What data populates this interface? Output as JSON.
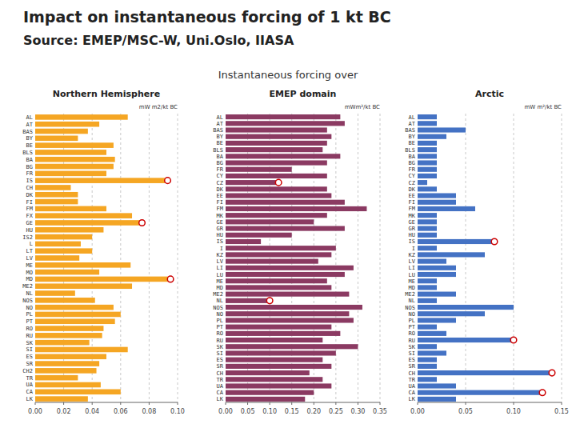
{
  "title": [
    "Impact on instantaneous forcing of 1 kt BC",
    "Source: EMEP/MSC-W, Uni.Oslo, IIASA"
  ],
  "subtitle": "Instantaneous forcing over",
  "chart_data": [
    {
      "type": "bar",
      "orientation": "horizontal",
      "title": "Northern Hemisphere",
      "annotations": [
        "mW m2/kt BC"
      ],
      "categories": [
        "AL",
        "AT",
        "BAS",
        "BY",
        "BE",
        "BLS",
        "BA",
        "BG",
        "FR",
        "IS",
        "CH",
        "DK",
        "FI",
        "FM",
        "FX",
        "GE",
        "HU",
        "IS2",
        "L",
        "LT",
        "LV",
        "ME",
        "MO",
        "MD",
        "ME2",
        "NL",
        "NOS",
        "NO",
        "PL",
        "PT",
        "RO",
        "RU",
        "SK",
        "SI",
        "ES",
        "SR",
        "CH2",
        "TR",
        "UA",
        "CA",
        "LK"
      ],
      "series": [
        {
          "type": "bar",
          "color": "#F5A623",
          "values": [
            0.065,
            0.045,
            0.037,
            0.03,
            0.055,
            0.05,
            0.056,
            0.055,
            0.05,
            0.093,
            0.025,
            0.03,
            0.03,
            0.05,
            0.068,
            0.075,
            0.048,
            0.04,
            0.032,
            0.04,
            0.031,
            0.067,
            0.045,
            0.095,
            0.068,
            0.028,
            0.042,
            0.055,
            0.06,
            0.056,
            0.048,
            0.047,
            0.038,
            0.065,
            0.05,
            0.045,
            0.043,
            0.03,
            0.046,
            0.06,
            0.037
          ]
        },
        {
          "type": "scatter",
          "marker": "circle",
          "color": "#CC0000",
          "values": [
            null,
            null,
            null,
            null,
            null,
            null,
            null,
            null,
            null,
            0.093,
            null,
            null,
            null,
            null,
            null,
            0.075,
            null,
            null,
            null,
            null,
            null,
            null,
            null,
            0.095,
            null,
            null,
            null,
            null,
            null,
            null,
            null,
            null,
            null,
            null,
            null,
            null,
            null,
            null,
            null,
            null,
            null
          ]
        }
      ],
      "xlim": [
        0.0,
        0.1
      ],
      "xticks": [
        {
          "value": 0.0,
          "label": "0.00"
        },
        {
          "value": 0.02,
          "label": "0.02"
        },
        {
          "value": 0.04,
          "label": "0.04"
        },
        {
          "value": 0.06,
          "label": "0.06"
        },
        {
          "value": 0.08,
          "label": "0.08"
        },
        {
          "value": 0.1,
          "label": "0.10"
        }
      ],
      "grid": true
    },
    {
      "type": "bar",
      "orientation": "horizontal",
      "title": "EMEP domain",
      "annotations": [
        "mWm²/kt BC"
      ],
      "categories": [
        "AL",
        "AT",
        "BAS",
        "BY",
        "BE",
        "BLS",
        "BA",
        "BG",
        "FR",
        "CY",
        "CZ",
        "DK",
        "EE",
        "FI",
        "FM",
        "MK",
        "GE",
        "GR",
        "HU",
        "IS",
        "I",
        "KZ",
        "LV",
        "LI",
        "LU",
        "ME",
        "MD",
        "ME2",
        "NL",
        "NOS",
        "NO",
        "PL",
        "PT",
        "RO",
        "RU",
        "SK",
        "SI",
        "ES",
        "SR",
        "CH",
        "TR",
        "UA",
        "CA",
        "LK"
      ],
      "series": [
        {
          "type": "bar",
          "color": "#8B3A62",
          "values": [
            0.26,
            0.27,
            0.23,
            0.24,
            0.23,
            0.22,
            0.26,
            0.23,
            0.15,
            0.23,
            0.12,
            0.23,
            0.24,
            0.27,
            0.32,
            0.23,
            0.2,
            0.27,
            0.15,
            0.08,
            0.25,
            0.24,
            0.21,
            0.29,
            0.27,
            0.23,
            0.24,
            0.28,
            0.1,
            0.31,
            0.28,
            0.29,
            0.24,
            0.26,
            0.22,
            0.3,
            0.25,
            0.22,
            0.24,
            0.19,
            0.22,
            0.24,
            0.2,
            0.18
          ]
        },
        {
          "type": "scatter",
          "marker": "circle",
          "color": "#CC0000",
          "values": [
            null,
            null,
            null,
            null,
            null,
            null,
            null,
            null,
            null,
            null,
            0.12,
            null,
            null,
            null,
            null,
            null,
            null,
            null,
            null,
            null,
            null,
            null,
            null,
            null,
            null,
            null,
            null,
            null,
            0.1,
            null,
            null,
            null,
            null,
            null,
            null,
            null,
            null,
            null,
            null,
            null,
            null,
            null,
            null,
            null
          ]
        }
      ],
      "xlim": [
        0.0,
        0.35
      ],
      "xticks": [
        {
          "value": 0.0,
          "label": "0.00"
        },
        {
          "value": 0.05,
          "label": "0.05"
        },
        {
          "value": 0.1,
          "label": "0.10"
        },
        {
          "value": 0.15,
          "label": "0.15"
        },
        {
          "value": 0.2,
          "label": "0.20"
        },
        {
          "value": 0.25,
          "label": "0.25"
        },
        {
          "value": 0.3,
          "label": "0.30"
        },
        {
          "value": 0.35,
          "label": "0.35"
        }
      ],
      "grid": true
    },
    {
      "type": "bar",
      "orientation": "horizontal",
      "title": "Arctic",
      "annotations": [
        "mW m²/kt BC"
      ],
      "categories": [
        "AL",
        "AT",
        "BAS",
        "BY",
        "BE",
        "BLS",
        "BA",
        "BG",
        "FR",
        "CY",
        "CZ",
        "DK",
        "EE",
        "FI",
        "FM",
        "MK",
        "GE",
        "GR",
        "HU",
        "IS",
        "I",
        "KZ",
        "LV",
        "LI",
        "LU",
        "ME",
        "MD",
        "ME2",
        "NL",
        "NOS",
        "NO",
        "PL",
        "PT",
        "RO",
        "RU",
        "SK",
        "SI",
        "ES",
        "SR",
        "CH",
        "TR",
        "UA",
        "CA",
        "LK"
      ],
      "series": [
        {
          "type": "bar",
          "color": "#4472C4",
          "values": [
            0.02,
            0.02,
            0.05,
            0.03,
            0.02,
            0.02,
            0.02,
            0.02,
            0.02,
            0.02,
            0.01,
            0.02,
            0.04,
            0.04,
            0.06,
            0.02,
            0.02,
            0.02,
            0.02,
            0.08,
            0.02,
            0.07,
            0.03,
            0.04,
            0.04,
            0.02,
            0.02,
            0.04,
            0.02,
            0.1,
            0.07,
            0.04,
            0.02,
            0.03,
            0.1,
            0.02,
            0.03,
            0.02,
            0.02,
            0.14,
            0.02,
            0.04,
            0.13,
            0.04
          ]
        },
        {
          "type": "scatter",
          "marker": "circle",
          "color": "#CC0000",
          "values": [
            null,
            null,
            null,
            null,
            null,
            null,
            null,
            null,
            null,
            null,
            null,
            null,
            null,
            null,
            null,
            null,
            null,
            null,
            null,
            0.08,
            null,
            null,
            null,
            null,
            null,
            null,
            null,
            null,
            null,
            null,
            null,
            null,
            null,
            null,
            0.1,
            null,
            null,
            null,
            null,
            0.14,
            null,
            null,
            0.13,
            null
          ]
        }
      ],
      "xlim": [
        0.0,
        0.15
      ],
      "xticks": [
        {
          "value": 0.0,
          "label": "0.00"
        },
        {
          "value": 0.05,
          "label": "0.05"
        },
        {
          "value": 0.1,
          "label": "0.10"
        },
        {
          "value": 0.15,
          "label": "0.15"
        }
      ],
      "grid": true
    }
  ]
}
